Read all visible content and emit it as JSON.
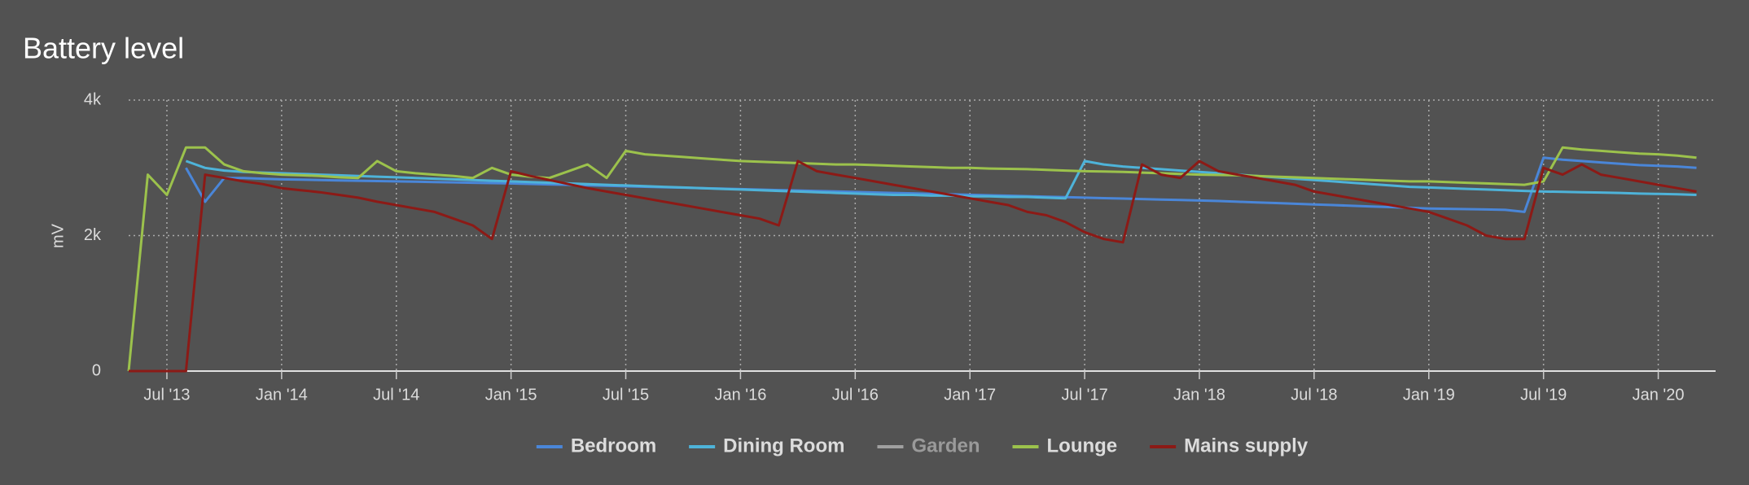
{
  "chart_data": {
    "type": "line",
    "title": "Battery level",
    "y_label": "mV",
    "x": [
      "2013-05",
      "2013-06",
      "2013-07",
      "2013-08",
      "2013-09",
      "2013-10",
      "2013-11",
      "2013-12",
      "2014-01",
      "2014-02",
      "2014-03",
      "2014-04",
      "2014-05",
      "2014-06",
      "2014-07",
      "2014-08",
      "2014-09",
      "2014-10",
      "2014-11",
      "2014-12",
      "2015-01",
      "2015-02",
      "2015-03",
      "2015-04",
      "2015-05",
      "2015-06",
      "2015-07",
      "2015-08",
      "2015-09",
      "2015-10",
      "2015-11",
      "2015-12",
      "2016-01",
      "2016-02",
      "2016-03",
      "2016-04",
      "2016-05",
      "2016-06",
      "2016-07",
      "2016-08",
      "2016-09",
      "2016-10",
      "2016-11",
      "2016-12",
      "2017-01",
      "2017-02",
      "2017-03",
      "2017-04",
      "2017-05",
      "2017-06",
      "2017-07",
      "2017-08",
      "2017-09",
      "2017-10",
      "2017-11",
      "2017-12",
      "2018-01",
      "2018-02",
      "2018-03",
      "2018-04",
      "2018-05",
      "2018-06",
      "2018-07",
      "2018-08",
      "2018-09",
      "2018-10",
      "2018-11",
      "2018-12",
      "2019-01",
      "2019-02",
      "2019-03",
      "2019-04",
      "2019-05",
      "2019-06",
      "2019-07",
      "2019-08",
      "2019-09",
      "2019-10",
      "2019-11",
      "2019-12",
      "2020-01",
      "2020-02",
      "2020-03"
    ],
    "series": [
      {
        "name": "Bedroom",
        "color": "#4a86d8",
        "visible": true,
        "values": [
          null,
          null,
          null,
          3000,
          2500,
          2850,
          2850,
          2840,
          2830,
          2825,
          2820,
          2815,
          2810,
          2805,
          2800,
          2795,
          2790,
          2785,
          2780,
          2775,
          2770,
          2763,
          2756,
          2749,
          2742,
          2735,
          2728,
          2721,
          2714,
          2707,
          2700,
          2693,
          2686,
          2679,
          2672,
          2665,
          2658,
          2651,
          2644,
          2637,
          2630,
          2623,
          2616,
          2609,
          2602,
          2595,
          2588,
          2581,
          2574,
          2567,
          2560,
          2553,
          2546,
          2539,
          2532,
          2525,
          2518,
          2510,
          2500,
          2490,
          2480,
          2470,
          2460,
          2450,
          2440,
          2430,
          2420,
          2410,
          2400,
          2395,
          2390,
          2385,
          2380,
          2350,
          3150,
          3120,
          3100,
          3080,
          3060,
          3040,
          3030,
          3020,
          3000
        ]
      },
      {
        "name": "Dining Room",
        "color": "#4eb3d9",
        "visible": true,
        "values": [
          null,
          null,
          null,
          3100,
          3000,
          2960,
          2940,
          2930,
          2920,
          2910,
          2900,
          2890,
          2880,
          2870,
          2860,
          2850,
          2840,
          2830,
          2820,
          2810,
          2800,
          2790,
          2780,
          2770,
          2760,
          2750,
          2740,
          2730,
          2720,
          2710,
          2700,
          2690,
          2680,
          2670,
          2660,
          2650,
          2640,
          2630,
          2620,
          2610,
          2600,
          2600,
          2590,
          2590,
          2580,
          2580,
          2570,
          2570,
          2560,
          2550,
          3100,
          3050,
          3020,
          3000,
          2980,
          2960,
          2940,
          2920,
          2900,
          2880,
          2860,
          2840,
          2820,
          2800,
          2780,
          2760,
          2740,
          2720,
          2710,
          2700,
          2690,
          2680,
          2670,
          2660,
          2650,
          2645,
          2640,
          2635,
          2630,
          2620,
          2615,
          2610,
          2600
        ]
      },
      {
        "name": "Garden",
        "color": "#a0a0a0",
        "visible": false,
        "values": [
          null,
          null,
          null,
          null,
          null,
          null,
          null,
          null,
          null,
          null,
          null,
          null,
          null,
          null,
          null,
          null,
          null,
          null,
          null,
          null,
          null,
          null,
          null,
          null,
          null,
          null,
          null,
          null,
          null,
          null,
          null,
          null,
          null,
          null,
          null,
          null,
          null,
          null,
          null,
          null,
          null,
          null,
          null,
          null,
          null,
          null,
          null,
          null,
          null,
          null,
          null,
          null,
          null,
          null,
          null,
          null,
          null,
          null,
          null,
          null,
          null,
          null,
          null,
          null,
          null,
          null,
          null,
          null,
          null,
          null,
          null,
          null,
          null,
          null,
          null,
          null,
          null,
          null,
          null,
          null,
          null,
          null,
          null
        ]
      },
      {
        "name": "Lounge",
        "color": "#9cc24c",
        "visible": true,
        "values": [
          0,
          2900,
          2600,
          3300,
          3300,
          3050,
          2950,
          2920,
          2900,
          2890,
          2880,
          2860,
          2850,
          3100,
          2950,
          2920,
          2900,
          2880,
          2850,
          3000,
          2900,
          2870,
          2850,
          2950,
          3050,
          2850,
          3250,
          3200,
          3180,
          3160,
          3140,
          3120,
          3100,
          3090,
          3080,
          3070,
          3060,
          3050,
          3050,
          3040,
          3030,
          3020,
          3010,
          3000,
          3000,
          2990,
          2985,
          2980,
          2970,
          2960,
          2950,
          2945,
          2940,
          2930,
          2920,
          2910,
          2900,
          2895,
          2890,
          2880,
          2870,
          2860,
          2850,
          2840,
          2830,
          2820,
          2810,
          2800,
          2800,
          2790,
          2780,
          2770,
          2760,
          2750,
          2800,
          3300,
          3270,
          3250,
          3230,
          3210,
          3200,
          3180,
          3150
        ]
      },
      {
        "name": "Mains supply",
        "color": "#8c1a16",
        "visible": true,
        "values": [
          0,
          0,
          0,
          0,
          2900,
          2850,
          2800,
          2760,
          2700,
          2670,
          2640,
          2600,
          2560,
          2500,
          2450,
          2400,
          2350,
          2250,
          2150,
          1950,
          2950,
          2880,
          2820,
          2760,
          2700,
          2650,
          2600,
          2550,
          2500,
          2450,
          2400,
          2350,
          2300,
          2250,
          2150,
          3100,
          2950,
          2900,
          2850,
          2800,
          2750,
          2700,
          2650,
          2600,
          2550,
          2500,
          2450,
          2350,
          2300,
          2200,
          2050,
          1950,
          1900,
          3050,
          2900,
          2850,
          3100,
          2950,
          2900,
          2850,
          2800,
          2750,
          2650,
          2600,
          2550,
          2500,
          2450,
          2400,
          2350,
          2250,
          2150,
          2000,
          1950,
          1950,
          3000,
          2900,
          3050,
          2900,
          2850,
          2800,
          2750,
          2700,
          2650
        ]
      }
    ],
    "xlim": [
      "2013-05",
      "2020-04"
    ],
    "xticks": [
      {
        "value": "2013-07",
        "label": "Jul '13"
      },
      {
        "value": "2014-01",
        "label": "Jan '14"
      },
      {
        "value": "2014-07",
        "label": "Jul '14"
      },
      {
        "value": "2015-01",
        "label": "Jan '15"
      },
      {
        "value": "2015-07",
        "label": "Jul '15"
      },
      {
        "value": "2016-01",
        "label": "Jan '16"
      },
      {
        "value": "2016-07",
        "label": "Jul '16"
      },
      {
        "value": "2017-01",
        "label": "Jan '17"
      },
      {
        "value": "2017-07",
        "label": "Jul '17"
      },
      {
        "value": "2018-01",
        "label": "Jan '18"
      },
      {
        "value": "2018-07",
        "label": "Jul '18"
      },
      {
        "value": "2019-01",
        "label": "Jan '19"
      },
      {
        "value": "2019-07",
        "label": "Jul '19"
      },
      {
        "value": "2020-01",
        "label": "Jan '20"
      }
    ],
    "ylim": [
      0,
      4000
    ],
    "yticks": [
      0,
      {
        "value": 2000,
        "label": "2k"
      },
      {
        "value": 4000,
        "label": "4k"
      }
    ],
    "grid": true,
    "legend": "bottom"
  }
}
